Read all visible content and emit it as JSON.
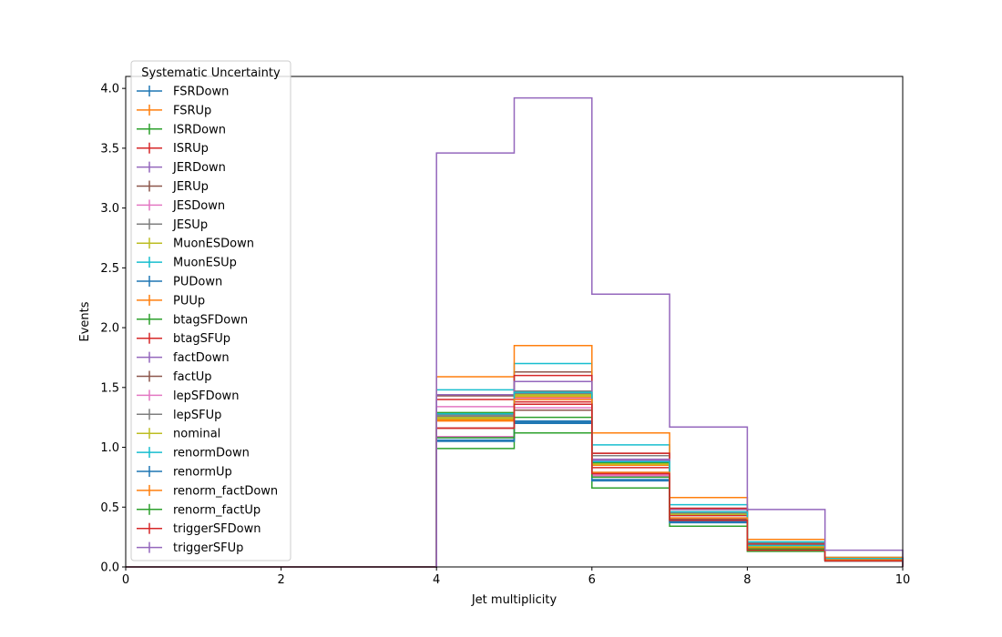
{
  "chart_data": {
    "type": "line",
    "step": true,
    "xlabel": "Jet multiplicity",
    "ylabel": "Events",
    "xlim": [
      0,
      10
    ],
    "ylim": [
      0,
      4.1
    ],
    "xticks": [
      "0",
      "2",
      "4",
      "6",
      "8",
      "10"
    ],
    "yticks": [
      "0.0",
      "0.5",
      "1.0",
      "1.5",
      "2.0",
      "2.5",
      "3.0",
      "3.5",
      "4.0"
    ],
    "grid": false,
    "legend": {
      "title": "Systematic Uncertainty",
      "position": "upper-left"
    },
    "bin_edges": [
      0,
      1,
      2,
      3,
      4,
      5,
      6,
      7,
      8,
      9,
      10
    ],
    "series": [
      {
        "name": "FSRDown",
        "color": "#1f77b4",
        "values": [
          0,
          0,
          0,
          0,
          1.08,
          1.21,
          0.77,
          0.43,
          0.17,
          0.06
        ]
      },
      {
        "name": "FSRUp",
        "color": "#ff7f0e",
        "values": [
          0,
          0,
          0,
          0,
          1.23,
          1.42,
          0.85,
          0.46,
          0.19,
          0.07
        ]
      },
      {
        "name": "ISRDown",
        "color": "#2ca02c",
        "values": [
          0,
          0,
          0,
          0,
          1.29,
          1.45,
          0.87,
          0.46,
          0.18,
          0.06
        ]
      },
      {
        "name": "ISRUp",
        "color": "#d62728",
        "values": [
          0,
          0,
          0,
          0,
          1.16,
          1.38,
          0.83,
          0.43,
          0.16,
          0.06
        ]
      },
      {
        "name": "JERDown",
        "color": "#9467bd",
        "values": [
          0,
          0,
          0,
          0,
          1.25,
          1.44,
          0.89,
          0.48,
          0.19,
          0.07
        ]
      },
      {
        "name": "JERUp",
        "color": "#8c564b",
        "values": [
          0,
          0,
          0,
          0,
          1.43,
          1.63,
          0.95,
          0.49,
          0.19,
          0.07
        ]
      },
      {
        "name": "JESDown",
        "color": "#e377c2",
        "values": [
          0,
          0,
          0,
          0,
          1.34,
          1.41,
          0.77,
          0.38,
          0.14,
          0.05
        ]
      },
      {
        "name": "JESUp",
        "color": "#7f7f7f",
        "values": [
          0,
          0,
          0,
          0,
          1.27,
          1.47,
          0.93,
          0.49,
          0.2,
          0.07
        ]
      },
      {
        "name": "MuonESDown",
        "color": "#bcbd22",
        "values": [
          0,
          0,
          0,
          0,
          1.25,
          1.44,
          0.86,
          0.45,
          0.18,
          0.06
        ]
      },
      {
        "name": "MuonESUp",
        "color": "#17becf",
        "values": [
          0,
          0,
          0,
          0,
          1.48,
          1.7,
          1.02,
          0.52,
          0.21,
          0.08
        ]
      },
      {
        "name": "PUDown",
        "color": "#1f77b4",
        "values": [
          0,
          0,
          0,
          0,
          1.06,
          1.22,
          0.73,
          0.38,
          0.15,
          0.05
        ]
      },
      {
        "name": "PUUp",
        "color": "#ff7f0e",
        "values": [
          0,
          0,
          0,
          0,
          1.59,
          1.85,
          1.12,
          0.58,
          0.23,
          0.08
        ]
      },
      {
        "name": "btagSFDown",
        "color": "#2ca02c",
        "values": [
          0,
          0,
          0,
          0,
          0.99,
          1.12,
          0.66,
          0.34,
          0.13,
          0.05
        ]
      },
      {
        "name": "btagSFUp",
        "color": "#d62728",
        "values": [
          0,
          0,
          0,
          0,
          1.4,
          1.6,
          0.95,
          0.49,
          0.19,
          0.07
        ]
      },
      {
        "name": "factDown",
        "color": "#9467bd",
        "values": [
          0,
          0,
          0,
          0,
          1.44,
          1.55,
          0.9,
          0.46,
          0.18,
          0.07
        ]
      },
      {
        "name": "factUp",
        "color": "#8c564b",
        "values": [
          0,
          0,
          0,
          0,
          1.16,
          1.31,
          0.79,
          0.4,
          0.16,
          0.06
        ]
      },
      {
        "name": "lepSFDown",
        "color": "#e377c2",
        "values": [
          0,
          0,
          0,
          0,
          1.09,
          1.33,
          0.76,
          0.41,
          0.15,
          0.05
        ]
      },
      {
        "name": "lepSFUp",
        "color": "#7f7f7f",
        "values": [
          0,
          0,
          0,
          0,
          1.26,
          1.45,
          0.88,
          0.45,
          0.18,
          0.06
        ]
      },
      {
        "name": "nominal",
        "color": "#bcbd22",
        "values": [
          0,
          0,
          0,
          0,
          1.24,
          1.43,
          0.86,
          0.44,
          0.17,
          0.06
        ]
      },
      {
        "name": "renormDown",
        "color": "#17becf",
        "values": [
          0,
          0,
          0,
          0,
          1.28,
          1.46,
          0.88,
          0.46,
          0.18,
          0.07
        ]
      },
      {
        "name": "renormUp",
        "color": "#1f77b4",
        "values": [
          0,
          0,
          0,
          0,
          1.05,
          1.2,
          0.72,
          0.37,
          0.15,
          0.05
        ]
      },
      {
        "name": "renorm_factDown",
        "color": "#ff7f0e",
        "values": [
          0,
          0,
          0,
          0,
          1.22,
          1.4,
          0.79,
          0.41,
          0.16,
          0.06
        ]
      },
      {
        "name": "renorm_factUp",
        "color": "#2ca02c",
        "values": [
          0,
          0,
          0,
          0,
          1.08,
          1.25,
          0.75,
          0.39,
          0.15,
          0.05
        ]
      },
      {
        "name": "triggerSFDown",
        "color": "#d62728",
        "values": [
          0,
          0,
          0,
          0,
          1.16,
          1.36,
          0.78,
          0.39,
          0.14,
          0.05
        ]
      },
      {
        "name": "triggerSFUp",
        "color": "#9467bd",
        "values": [
          0,
          0,
          0,
          0,
          3.46,
          3.92,
          2.28,
          1.17,
          0.48,
          0.14
        ]
      }
    ]
  }
}
